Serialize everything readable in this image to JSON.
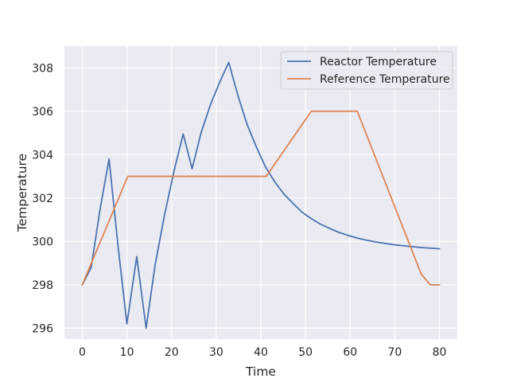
{
  "chart_data": {
    "type": "line",
    "xlabel": "Time",
    "ylabel": "Temperature",
    "xlim": [
      -4,
      84
    ],
    "ylim": [
      295.5,
      309.0
    ],
    "xticks": [
      0,
      10,
      20,
      30,
      40,
      50,
      60,
      70,
      80
    ],
    "yticks": [
      296,
      298,
      300,
      302,
      304,
      306,
      308
    ],
    "grid": true,
    "legend_position": "upper right",
    "series": [
      {
        "name": "Reactor Temperature",
        "color": "#4c72b0",
        "points": [
          [
            0,
            298.0
          ],
          [
            2,
            298.8
          ],
          [
            4,
            301.5
          ],
          [
            6,
            303.8
          ],
          [
            8,
            299.8
          ],
          [
            10,
            296.2
          ],
          [
            12.2,
            299.3
          ],
          [
            14.3,
            296.0
          ],
          [
            16.3,
            298.9
          ],
          [
            18.4,
            301.2
          ],
          [
            20.5,
            303.2
          ],
          [
            22.6,
            304.95
          ],
          [
            24.6,
            303.35
          ],
          [
            26.6,
            305.0
          ],
          [
            28.7,
            306.3
          ],
          [
            30.8,
            307.35
          ],
          [
            32.8,
            308.25
          ],
          [
            34.9,
            306.7
          ],
          [
            36.9,
            305.4
          ],
          [
            39.0,
            304.35
          ],
          [
            41.0,
            303.45
          ],
          [
            43.1,
            302.75
          ],
          [
            45.1,
            302.2
          ],
          [
            47.2,
            301.75
          ],
          [
            49.2,
            301.35
          ],
          [
            51.3,
            301.05
          ],
          [
            53.3,
            300.8
          ],
          [
            55.4,
            300.6
          ],
          [
            57.4,
            300.42
          ],
          [
            59.5,
            300.28
          ],
          [
            61.5,
            300.16
          ],
          [
            63.6,
            300.06
          ],
          [
            65.6,
            299.98
          ],
          [
            67.7,
            299.91
          ],
          [
            69.7,
            299.85
          ],
          [
            71.8,
            299.8
          ],
          [
            73.8,
            299.76
          ],
          [
            75.9,
            299.72
          ],
          [
            77.9,
            299.69
          ],
          [
            80.0,
            299.66
          ]
        ]
      },
      {
        "name": "Reference Temperature",
        "color": "#dd8452",
        "points": [
          [
            0,
            298.0
          ],
          [
            10.2,
            303.0
          ],
          [
            41.2,
            303.0
          ],
          [
            51.3,
            306.0
          ],
          [
            61.6,
            306.0
          ],
          [
            75.9,
            298.5
          ],
          [
            77.9,
            298.0
          ],
          [
            80.0,
            298.0
          ]
        ]
      }
    ]
  }
}
